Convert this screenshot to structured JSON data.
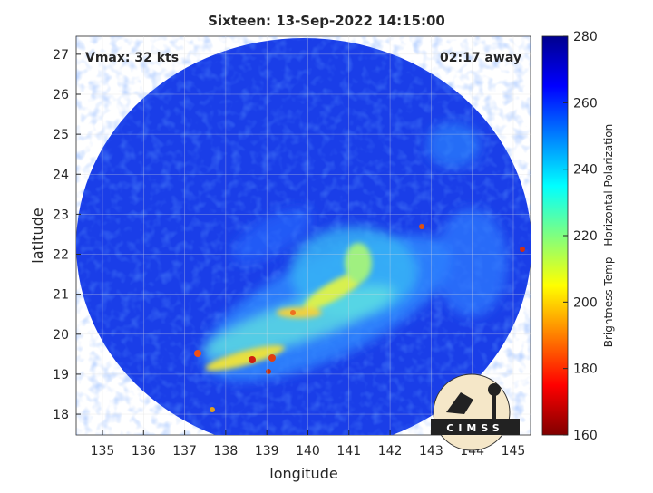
{
  "chart_data": {
    "type": "image",
    "title": "Sixteen: 13-Sep-2022 14:15:00",
    "annotations": [
      "Vmax: 32 kts",
      "02:17 away"
    ],
    "xlabel": "longitude",
    "ylabel": "latitude",
    "xlim": [
      134.36,
      145.42
    ],
    "xticks": [
      135,
      136,
      137,
      138,
      139,
      140,
      141,
      142,
      143,
      144,
      145
    ],
    "ylim": [
      17.48,
      27.45
    ],
    "yticks": [
      18,
      19,
      20,
      21,
      22,
      23,
      24,
      25,
      26,
      27
    ],
    "grid": true,
    "colorbar": {
      "label": "Brightness Temp - Horizontal Polarization",
      "lim": [
        160,
        280
      ],
      "ticks": [
        160,
        180,
        200,
        220,
        240,
        260,
        280
      ],
      "colormap": "jet",
      "reversed": true
    },
    "logo_text": "CIMSS"
  }
}
